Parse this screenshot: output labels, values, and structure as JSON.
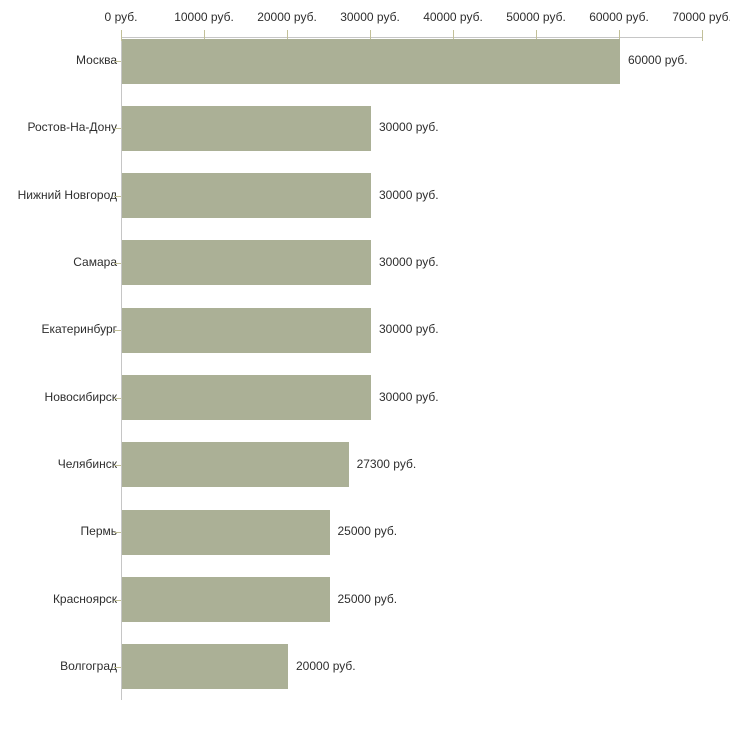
{
  "chart_data": {
    "type": "bar",
    "orientation": "horizontal",
    "title": "",
    "categories": [
      "Москва",
      "Ростов-На-Дону",
      "Нижний Новгород",
      "Самара",
      "Екатеринбург",
      "Новосибирск",
      "Челябинск",
      "Пермь",
      "Красноярск",
      "Волгоград"
    ],
    "values": [
      60000,
      30000,
      30000,
      30000,
      30000,
      30000,
      27300,
      25000,
      25000,
      20000
    ],
    "value_labels": [
      "60000 руб.",
      "30000 руб.",
      "30000 руб.",
      "30000 руб.",
      "30000 руб.",
      "30000 руб.",
      "27300 руб.",
      "25000 руб.",
      "25000 руб.",
      "20000 руб."
    ],
    "x_axis": {
      "position": "top",
      "range": [
        0,
        70000
      ],
      "ticks": [
        0,
        10000,
        20000,
        30000,
        40000,
        50000,
        60000,
        70000
      ],
      "tick_labels": [
        "0 руб.",
        "10000 руб.",
        "20000 руб.",
        "30000 руб.",
        "40000 руб.",
        "50000 руб.",
        "60000 руб.",
        "70000 руб."
      ]
    },
    "ylabel": "",
    "xlabel": "",
    "grid": false,
    "legend": false,
    "unit": "руб.",
    "colors": {
      "bar": "#abb096",
      "axis_line": "#c6c6c6",
      "tick": "#c2c098",
      "text": "#2e2e2e",
      "background": "#ffffff"
    }
  }
}
